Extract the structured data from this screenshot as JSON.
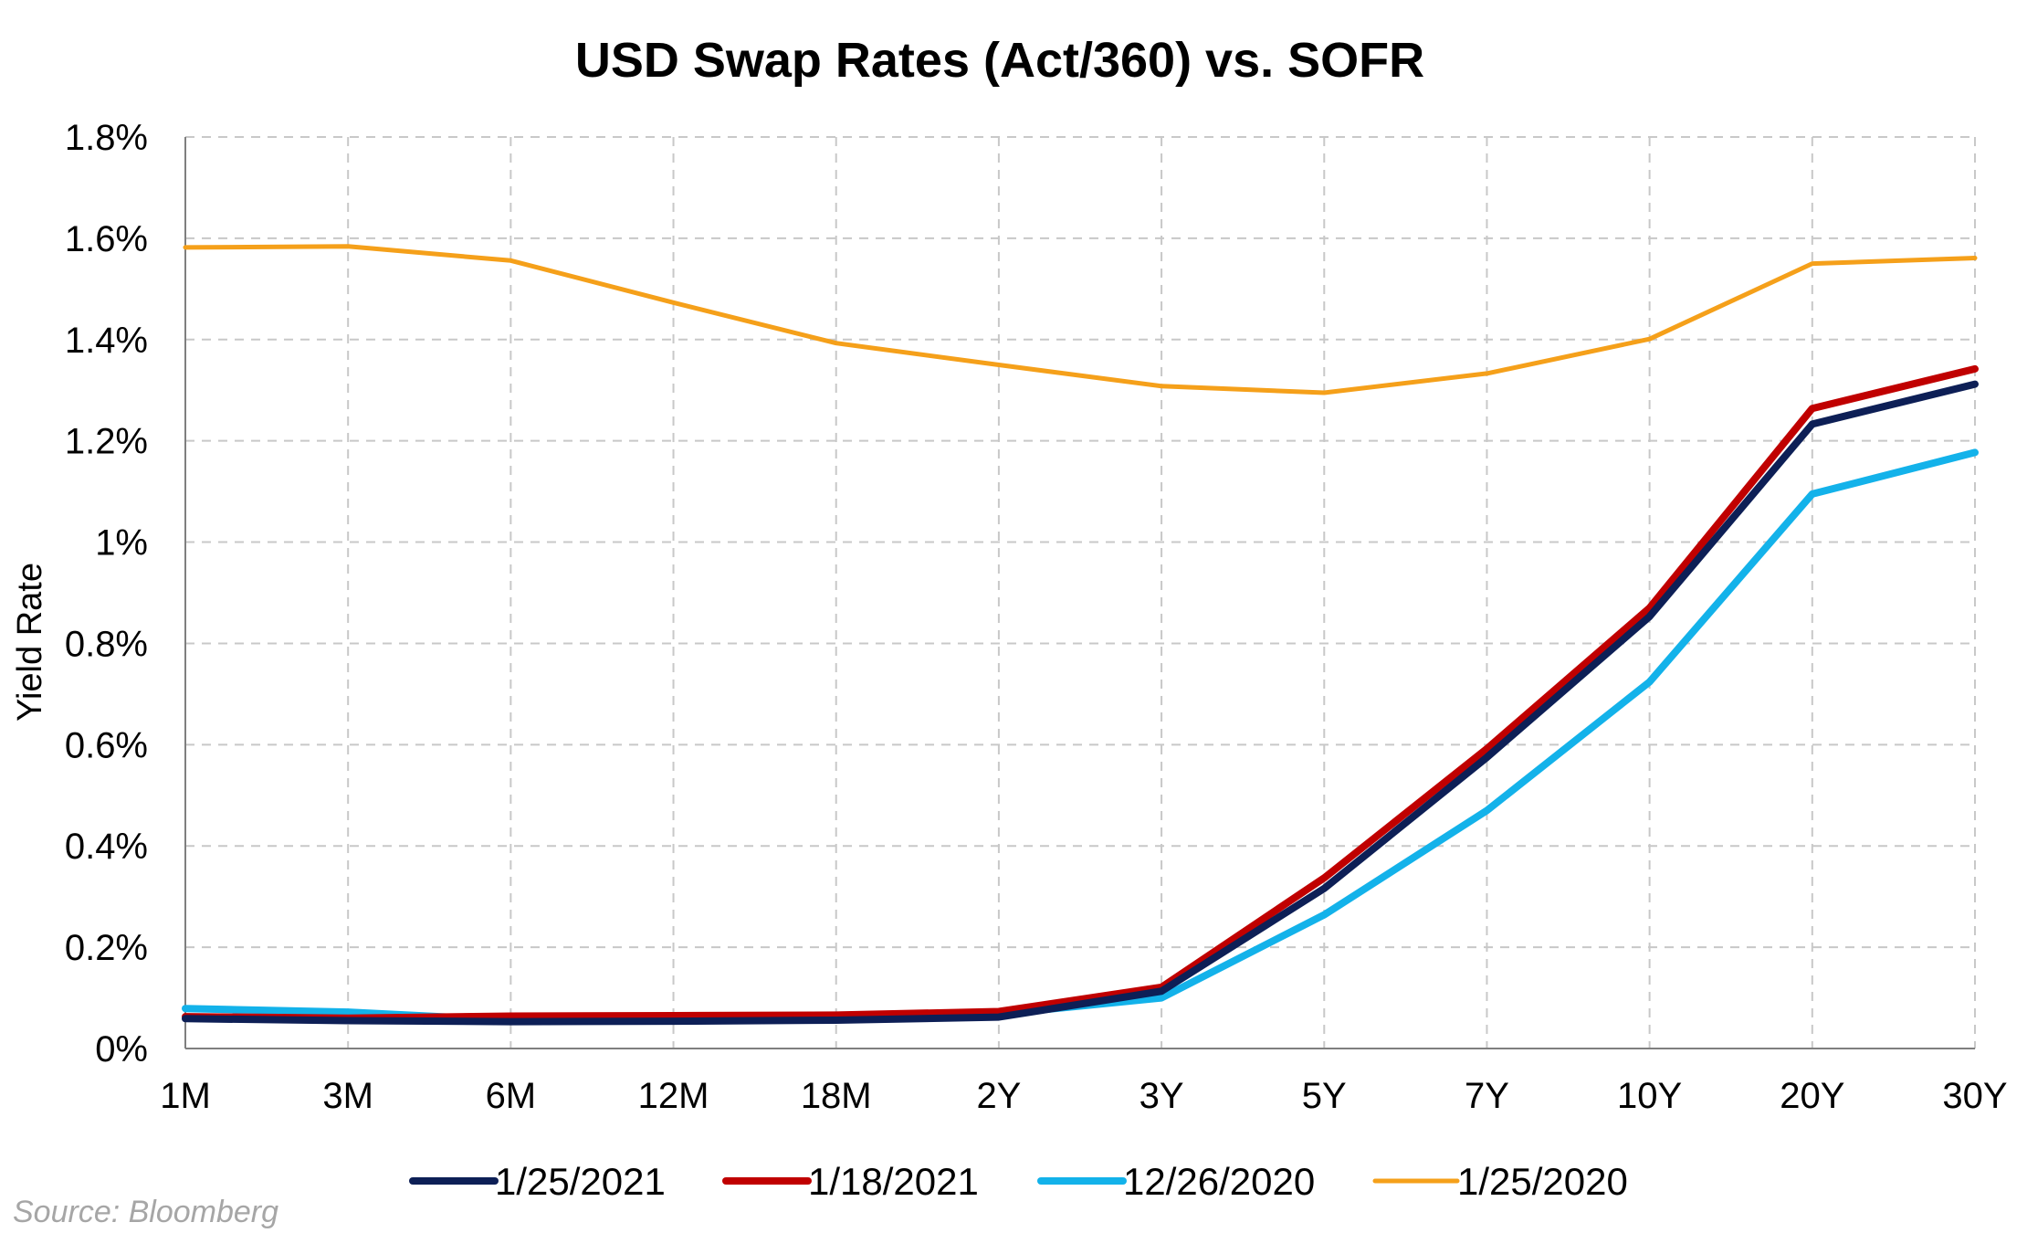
{
  "chart_data": {
    "type": "line",
    "title": "USD Swap Rates (Act/360) vs. SOFR",
    "xlabel": "",
    "ylabel": "Yield Rate",
    "categories": [
      "1M",
      "3M",
      "6M",
      "12M",
      "18M",
      "2Y",
      "3Y",
      "5Y",
      "7Y",
      "10Y",
      "20Y",
      "30Y"
    ],
    "ylim": [
      0,
      1.8
    ],
    "yticks": [
      0,
      0.2,
      0.4,
      0.6,
      0.8,
      1.0,
      1.2,
      1.4,
      1.6,
      1.8
    ],
    "ytick_labels": [
      "0%",
      "0.2%",
      "0.4%",
      "0.6%",
      "0.8%",
      "1%",
      "1.2%",
      "1.4%",
      "1.6%",
      "1.8%"
    ],
    "grid": true,
    "legend_position": "bottom",
    "series": [
      {
        "name": "1/25/2020",
        "color": "#f5a01a",
        "values": [
          1.582,
          1.584,
          1.556,
          1.473,
          1.393,
          1.35,
          1.308,
          1.295,
          1.333,
          1.401,
          1.55,
          1.561
        ]
      },
      {
        "name": "12/26/2020",
        "color": "#13b2ea",
        "values": [
          0.079,
          0.072,
          0.056,
          0.056,
          0.058,
          0.068,
          0.1,
          0.264,
          0.47,
          0.724,
          1.095,
          1.177
        ]
      },
      {
        "name": "1/18/2021",
        "color": "#c00000",
        "values": [
          0.063,
          0.06,
          0.064,
          0.065,
          0.066,
          0.073,
          0.121,
          0.337,
          0.592,
          0.87,
          1.264,
          1.342
        ]
      },
      {
        "name": "1/25/2021",
        "color": "#0d1f56",
        "values": [
          0.059,
          0.055,
          0.053,
          0.054,
          0.056,
          0.062,
          0.113,
          0.316,
          0.575,
          0.853,
          1.233,
          1.312
        ]
      }
    ],
    "legend_order": [
      "1/25/2021",
      "1/18/2021",
      "12/26/2020",
      "1/25/2020"
    ]
  },
  "source": "Source: Bloomberg"
}
